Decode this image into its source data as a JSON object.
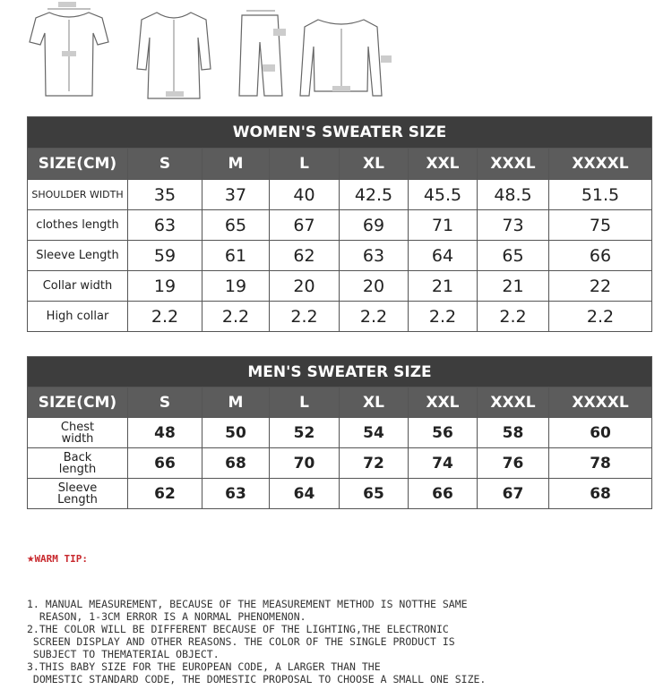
{
  "women": {
    "title": "WOMEN'S SWEATER SIZE",
    "size_label": "SIZE(CM)",
    "sizes": [
      "S",
      "M",
      "L",
      "XL",
      "XXL",
      "XXXL",
      "XXXXL"
    ],
    "rows": [
      {
        "label": "SHOULDER WIDTH",
        "values": [
          "35",
          "37",
          "40",
          "42.5",
          "45.5",
          "48.5",
          "51.5"
        ]
      },
      {
        "label": "clothes length",
        "values": [
          "63",
          "65",
          "67",
          "69",
          "71",
          "73",
          "75"
        ]
      },
      {
        "label": "Sleeve Length",
        "values": [
          "59",
          "61",
          "62",
          "63",
          "64",
          "65",
          "66"
        ]
      },
      {
        "label": "Collar width",
        "values": [
          "19",
          "19",
          "20",
          "20",
          "21",
          "21",
          "22"
        ]
      },
      {
        "label": "High collar",
        "values": [
          "2.2",
          "2.2",
          "2.2",
          "2.2",
          "2.2",
          "2.2",
          "2.2"
        ]
      }
    ]
  },
  "men": {
    "title": "MEN'S SWEATER SIZE",
    "size_label": "SIZE(CM)",
    "sizes": [
      "S",
      "M",
      "L",
      "XL",
      "XXL",
      "XXXL",
      "XXXXL"
    ],
    "rows": [
      {
        "label": "Chest width",
        "values": [
          "48",
          "50",
          "52",
          "54",
          "56",
          "58",
          "60"
        ]
      },
      {
        "label": "Back length",
        "values": [
          "66",
          "68",
          "70",
          "72",
          "74",
          "76",
          "78"
        ]
      },
      {
        "label": "Sleeve Length",
        "values": [
          "62",
          "63",
          "64",
          "65",
          "66",
          "67",
          "68"
        ]
      }
    ]
  },
  "tips": {
    "title": "WARM TIP:",
    "icon": "star-icon",
    "color": "#c8282d",
    "lines": [
      "1. MANUAL MEASUREMENT, BECAUSE OF THE MEASUREMENT METHOD IS NOTTHE SAME",
      "  REASON, 1-3CM ERROR IS A NORMAL PHENOMENON.",
      "2.THE COLOR WILL BE DIFFERENT BECAUSE OF THE LIGHTING,THE ELECTRONIC",
      " SCREEN DISPLAY AND OTHER REASONS. THE COLOR OF THE SINGLE PRODUCT IS",
      " SUBJECT TO THEMATERIAL OBJECT.",
      "3.THIS BABY SIZE FOR THE EUROPEAN CODE, A LARGER THAN THE",
      " DOMESTIC STANDARD CODE, THE DOMESTIC PROPOSAL TO CHOOSE A SMALL ONE SIZE."
    ]
  }
}
